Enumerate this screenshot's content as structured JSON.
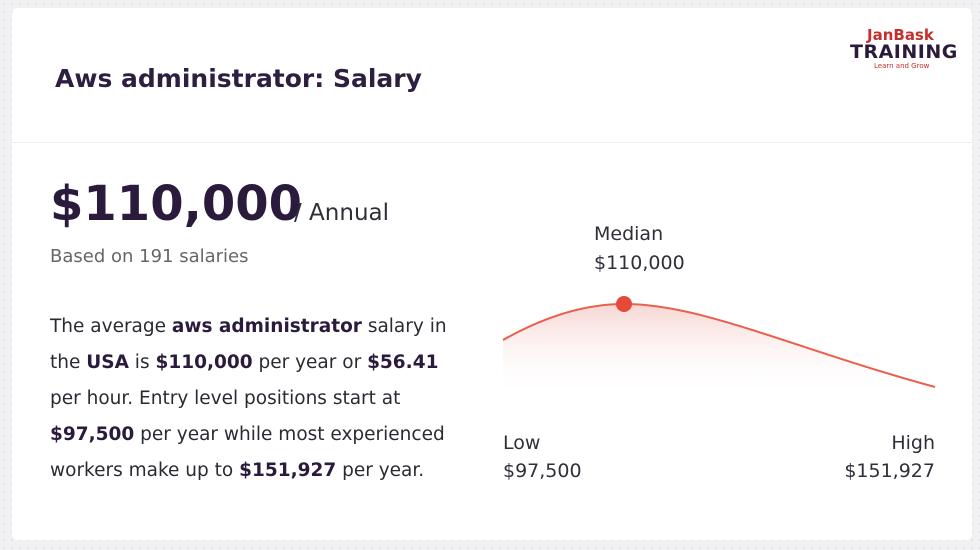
{
  "header": {
    "title": "Aws administrator: Salary"
  },
  "logo": {
    "brand": "JanBask",
    "name": "TRAINING",
    "tagline": "Learn and Grow"
  },
  "salary": {
    "amount": "$110,000",
    "period": "/ Annual",
    "basis": "Based on 191 salaries"
  },
  "description": [
    {
      "text": "The average ",
      "bold": false
    },
    {
      "text": "aws administrator",
      "bold": true
    },
    {
      "text": " salary in the ",
      "bold": false
    },
    {
      "text": "USA",
      "bold": true
    },
    {
      "text": " is ",
      "bold": false
    },
    {
      "text": "$110,000",
      "bold": true
    },
    {
      "text": " per year or ",
      "bold": false
    },
    {
      "text": "$56.41",
      "bold": true
    },
    {
      "text": " per hour. Entry level positions start at ",
      "bold": false
    },
    {
      "text": "$97,500",
      "bold": true
    },
    {
      "text": " per year while most experienced workers make up to ",
      "bold": false
    },
    {
      "text": "$151,927",
      "bold": true
    },
    {
      "text": " per year.",
      "bold": false
    }
  ],
  "curve": {
    "median_label": "Median",
    "median_value": "$110,000",
    "low_label": "Low",
    "low_value": "$97,500",
    "high_label": "High",
    "high_value": "$151,927"
  }
}
